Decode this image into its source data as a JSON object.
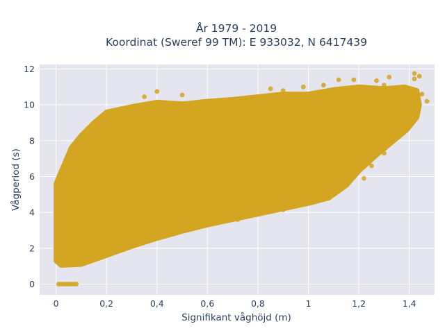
{
  "chart_data": {
    "type": "scatter",
    "title": [
      "År 1979 - 2019",
      "Koordinat (Sweref 99 TM): E 933032, N 6417439"
    ],
    "xlabel": "Signifikant våghöjd (m)",
    "ylabel": "Vågperiod (s)",
    "xlim": [
      -0.065,
      1.5
    ],
    "ylim": [
      -0.6,
      12.25
    ],
    "x_ticks": [
      0,
      0.2,
      0.4,
      0.6,
      0.8,
      1,
      1.2,
      1.4
    ],
    "x_tick_labels": [
      "0",
      "0,2",
      "0,4",
      "0,6",
      "0,8",
      "1",
      "1,2",
      "1,4"
    ],
    "y_ticks": [
      0,
      2,
      4,
      6,
      8,
      10,
      12
    ],
    "y_tick_labels": [
      "0",
      "2",
      "4",
      "6",
      "8",
      "10",
      "12"
    ],
    "grid": true,
    "legend": "none",
    "marker_color": "#D4A520",
    "plot_background": "#E5E5F0",
    "point_cloud_outline": [
      [
        0.0,
        1.3
      ],
      [
        0.02,
        1.05
      ],
      [
        0.1,
        1.1
      ],
      [
        0.2,
        1.6
      ],
      [
        0.3,
        2.1
      ],
      [
        0.4,
        2.55
      ],
      [
        0.5,
        2.95
      ],
      [
        0.6,
        3.3
      ],
      [
        0.7,
        3.6
      ],
      [
        0.8,
        3.9
      ],
      [
        0.9,
        4.2
      ],
      [
        1.0,
        4.5
      ],
      [
        1.08,
        4.8
      ],
      [
        1.15,
        5.5
      ],
      [
        1.2,
        6.3
      ],
      [
        1.27,
        7.2
      ],
      [
        1.33,
        7.9
      ],
      [
        1.39,
        8.6
      ],
      [
        1.43,
        9.3
      ],
      [
        1.44,
        10.0
      ],
      [
        1.43,
        10.8
      ],
      [
        1.38,
        11.0
      ],
      [
        1.3,
        10.9
      ],
      [
        1.2,
        11.0
      ],
      [
        1.1,
        10.85
      ],
      [
        1.0,
        10.6
      ],
      [
        0.9,
        10.6
      ],
      [
        0.8,
        10.45
      ],
      [
        0.7,
        10.3
      ],
      [
        0.6,
        10.2
      ],
      [
        0.5,
        10.05
      ],
      [
        0.4,
        10.15
      ],
      [
        0.3,
        9.9
      ],
      [
        0.2,
        9.6
      ],
      [
        0.15,
        9.0
      ],
      [
        0.1,
        8.3
      ],
      [
        0.06,
        7.6
      ],
      [
        0.03,
        6.6
      ],
      [
        0.0,
        5.6
      ]
    ],
    "points": [
      [
        0.01,
        0
      ],
      [
        0.02,
        0
      ],
      [
        0.03,
        0
      ],
      [
        0.04,
        0
      ],
      [
        0.05,
        0
      ],
      [
        0.06,
        0
      ],
      [
        0.07,
        0
      ],
      [
        0.08,
        0
      ],
      [
        1.42,
        11.75
      ],
      [
        1.44,
        11.6
      ],
      [
        1.32,
        11.55
      ],
      [
        1.42,
        11.45
      ],
      [
        1.27,
        11.35
      ],
      [
        1.18,
        11.4
      ],
      [
        1.12,
        11.4
      ],
      [
        0.9,
        10.8
      ],
      [
        0.85,
        10.9
      ],
      [
        0.5,
        10.55
      ],
      [
        0.4,
        10.75
      ],
      [
        0.35,
        10.45
      ],
      [
        1.35,
        10.6
      ],
      [
        1.45,
        10.6
      ],
      [
        1.47,
        10.2
      ],
      [
        1.3,
        11.1
      ],
      [
        1.06,
        11.1
      ],
      [
        0.98,
        11.0
      ],
      [
        1.22,
        5.9
      ],
      [
        1.15,
        5.5
      ],
      [
        1.25,
        6.6
      ],
      [
        1.3,
        7.3
      ],
      [
        1.08,
        4.9
      ],
      [
        0.9,
        4.15
      ],
      [
        0.72,
        3.6
      ]
    ]
  }
}
